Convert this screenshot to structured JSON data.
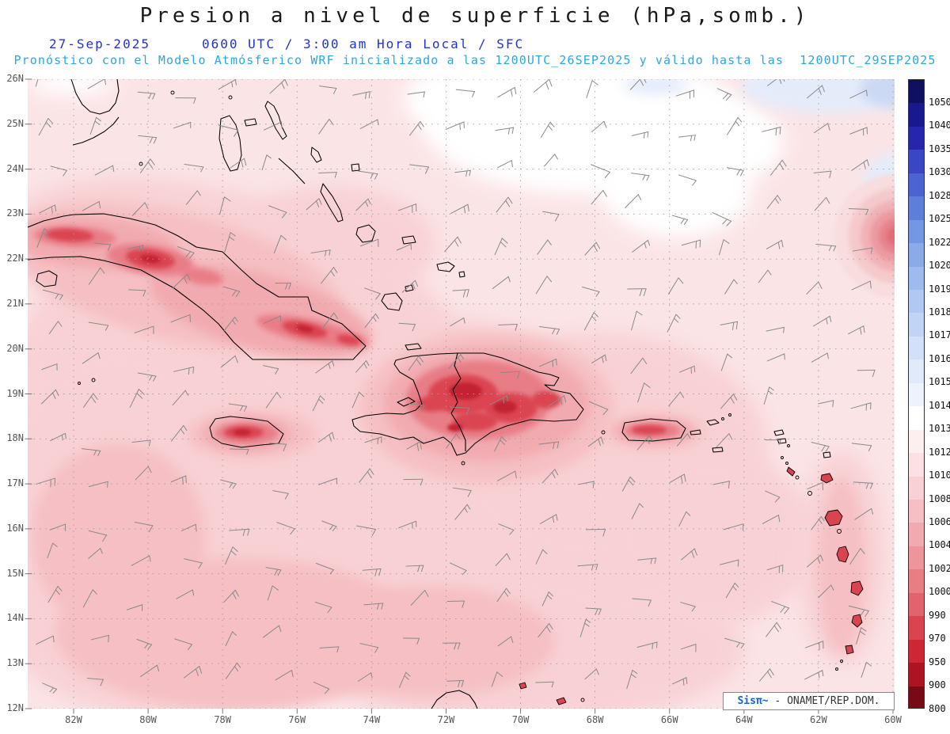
{
  "header": {
    "title": "Presion a nivel de superficie (hPa,somb.)",
    "date": "27-Sep-2025",
    "time": "0600 UTC / 3:00 am Hora Local / SFC",
    "forecast": "Pronóstico con el Modelo Atmósferico WRF inicializado a las 1200UTC_26SEP2025 y válido hasta las  1200UTC_29SEP2025"
  },
  "chart_data": {
    "type": "heatmap",
    "title": "Presion a nivel de superficie (hPa,somb.)",
    "variable": "surface pressure",
    "units": "hPa",
    "region": "Caribbean / Greater Antilles",
    "valid": "27-Sep-2025 0600 UTC / 3:00 am Hora Local / SFC",
    "model": "WRF",
    "initialized": "1200UTC_26SEP2025",
    "valid_until": "1200UTC_29SEP2025",
    "lat_ticks": [
      "26N",
      "25N",
      "24N",
      "23N",
      "22N",
      "21N",
      "20N",
      "19N",
      "18N",
      "17N",
      "16N",
      "15N",
      "14N",
      "13N",
      "12N"
    ],
    "lon_ticks": [
      "82W",
      "80W",
      "78W",
      "76W",
      "74W",
      "72W",
      "70W",
      "68W",
      "66W",
      "64W",
      "62W",
      "60W"
    ],
    "colorbar_levels": [
      1050,
      1040,
      1035,
      1030,
      1028,
      1025,
      1022,
      1020,
      1019,
      1018,
      1017,
      1016,
      1015,
      1014,
      1013,
      1012,
      1010,
      1008,
      1006,
      1004,
      1002,
      1000,
      990,
      970,
      950,
      900,
      800
    ],
    "colorbar_colors": [
      "#101060",
      "#18188f",
      "#2626ad",
      "#3a47c4",
      "#4c63d2",
      "#5f7eda",
      "#7596e2",
      "#8baae8",
      "#9fbaee",
      "#b1c8f2",
      "#c2d4f5",
      "#d2e0f8",
      "#e0eafb",
      "#edf2fd",
      "#ffffff",
      "#fdeff0",
      "#fbe1e3",
      "#f8d1d4",
      "#f5bfc3",
      "#f1abb0",
      "#ed959b",
      "#e87d86",
      "#e2626d",
      "#da4451",
      "#cd2736",
      "#ad1423",
      "#770a15"
    ],
    "legend_position": "right",
    "grid": true,
    "overlays": [
      "wind barbs",
      "coastlines",
      "lat-lon dotted grid"
    ],
    "features": [
      "low pressure shading (~1000-1008 hPa) over Cuba, Jamaica, Hispaniola, Puerto Rico and the Lesser Antilles",
      "higher pressure (white/pale blue, >=1013 hPa) along the northern and northeastern edge",
      "circular low with concentric pink shading near 60W / 22.5N"
    ]
  },
  "shading": {
    "base_pink": "#fbe4e6",
    "pink_1008": "#f8d1d4",
    "pink_1006": "#f5bfc3",
    "pink_1004": "#f1abb0",
    "red_1000": "#e87d86",
    "red_core": "#da4451",
    "red_dark": "#c32030",
    "white": "#ffffff",
    "blue_pale": "#e4ecfa",
    "blue_deep": "#ccd9f4",
    "land_red": "#da4451",
    "coast": "#000000",
    "barb": "#8a8a8a",
    "grid": "#9f9f9f",
    "axis_label": "#555555",
    "cb_label": "#111111"
  },
  "attribution": {
    "brand": "Sisπ~",
    "text": " - ONAMET/REP.DOM."
  }
}
